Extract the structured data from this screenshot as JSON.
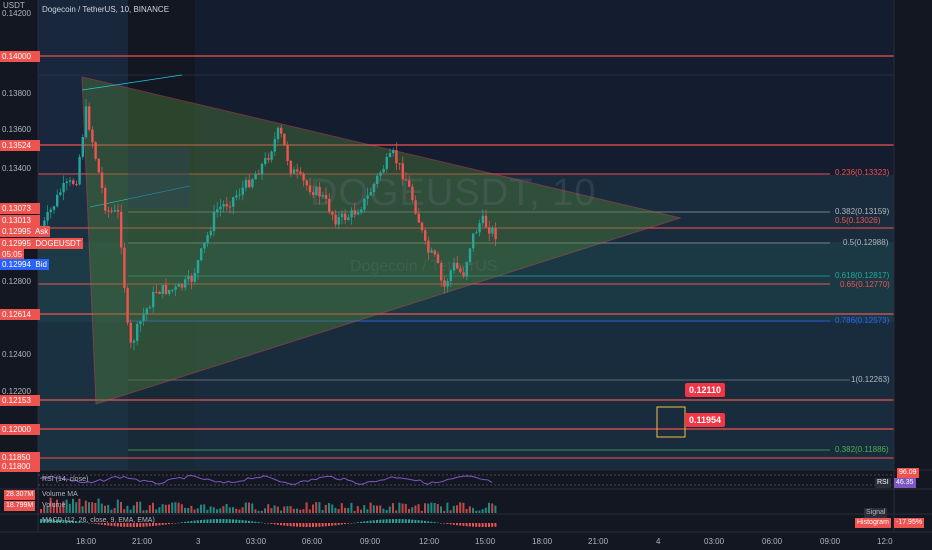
{
  "header": {
    "unit": "USDT",
    "symbol_line": "Dogecoin / TetherUS, 10, BINANCE",
    "watermark": "DOGEUSDT, 10",
    "watermark_sub": "Dogecoin / TetherUS"
  },
  "price_axis": {
    "ticks": [
      "0.14200",
      "0.13800",
      "0.13600",
      "0.13400",
      "0.12800",
      "0.12400",
      "0.12200"
    ],
    "red_levels": [
      "0.14000",
      "0.13524",
      "0.12614",
      "0.12153",
      "0.12000",
      "0.11850",
      "0.11800"
    ],
    "quote_labels": {
      "level_a": "0.13073",
      "level_b": "0.13013",
      "ask_price": "0.12995",
      "ask_label": "Ask",
      "symbol_price": "0.12995",
      "symbol_label": "DOGEUSDT",
      "countdown": "05:05",
      "bid_price": "0.12994",
      "bid_label": "Bid"
    }
  },
  "fib_levels": [
    {
      "label": "0.236(0.13323)",
      "color": "#ef5350"
    },
    {
      "label": "0.382(0.13159)",
      "color": "#b2b5be"
    },
    {
      "label": "0.5(0.13026)",
      "color": "#ef5350"
    },
    {
      "label": "0.5(0.12988)",
      "color": "#b2b5be"
    },
    {
      "label": "0.618(0.12817)",
      "color": "#26a69a"
    },
    {
      "label": "0.65(0.12770)",
      "color": "#ef5350"
    },
    {
      "label": "0.786(0.12573)",
      "color": "#2962ff"
    },
    {
      "label": "1(0.12263)",
      "color": "#b2b5be"
    },
    {
      "label": "0.382(0.11886)",
      "color": "#4caf50"
    }
  ],
  "callouts": [
    "0.12110",
    "0.11954"
  ],
  "time_axis": [
    "18:00",
    "21:00",
    "3",
    "03:00",
    "06:00",
    "09:00",
    "12:00",
    "15:00",
    "18:00",
    "21:00",
    "4",
    "03:00",
    "06:00",
    "09:00",
    "12:0"
  ],
  "rsi": {
    "name": "RSI (14, close)",
    "badge_label": "RSI",
    "value": "46.35",
    "upper": "96.09"
  },
  "volume": {
    "ma_label": "Volume MA",
    "ma_value": "28.307M",
    "vol_label": "Volume",
    "vol_value": "18.799M"
  },
  "macd": {
    "name": "MACD (12, 26, close, 9, EMA, EMA)",
    "signal_label": "Signal",
    "hist_label": "Histogram",
    "hist_value": "-17.95%"
  },
  "colors": {
    "up": "#26a69a",
    "down": "#ef5350",
    "bg": "#131722",
    "accent_red": "#f23645"
  }
}
